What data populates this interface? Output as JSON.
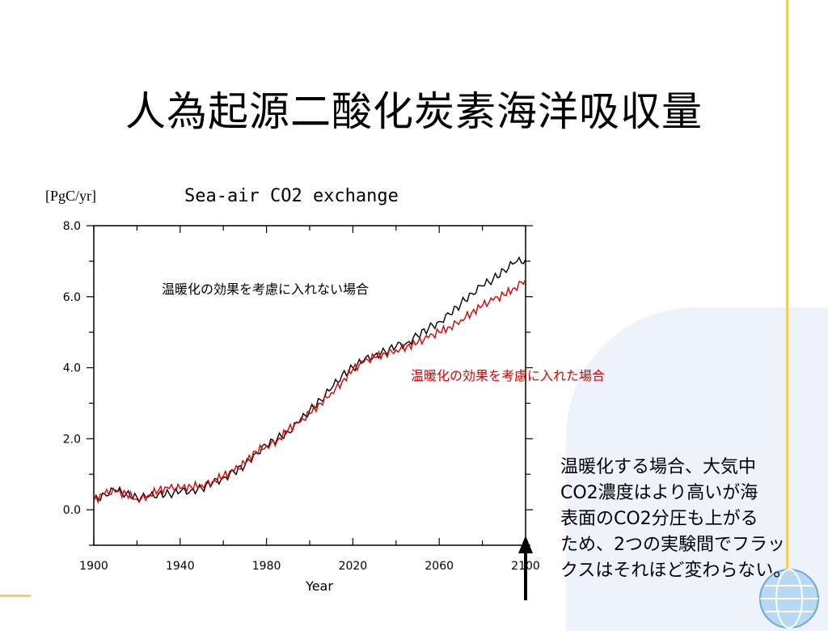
{
  "slide": {
    "title": "人為起源二酸化炭素海洋吸収量",
    "unit_label": "[PgC/yr]",
    "note_lines": [
      "温暖化する場合、大気中",
      "CO2濃度はより高いが海",
      "表面のCO2分圧も上がる",
      "ため、2つの実験間でフラッ",
      "クスはそれほど変わらない。"
    ]
  },
  "chart_data": {
    "type": "line",
    "title": "Sea-air CO2 exchange",
    "xlabel": "Year",
    "ylabel": "[PgC/yr]",
    "xlim": [
      1900,
      2100
    ],
    "ylim": [
      -1,
      8
    ],
    "x_ticks": [
      1900,
      1940,
      1980,
      2020,
      2060,
      2100
    ],
    "y_ticks": [
      "0.0",
      "2.0",
      "4.0",
      "6.0",
      "8.0"
    ],
    "grid": false,
    "annotations": [
      {
        "text": "温暖化の効果を考慮に入れない場合",
        "color": "#000000"
      },
      {
        "text": "温暖化の効果を考慮に入れた場合",
        "color": "#e00000"
      }
    ],
    "marker": {
      "x": 2100,
      "label": "arrow"
    },
    "series": [
      {
        "color": "#000000",
        "x": [
          1900,
          1905,
          1910,
          1915,
          1920,
          1925,
          1930,
          1935,
          1940,
          1945,
          1950,
          1955,
          1960,
          1965,
          1970,
          1975,
          1980,
          1985,
          1990,
          1995,
          2000,
          2005,
          2010,
          2015,
          2020,
          2025,
          2030,
          2035,
          2040,
          2045,
          2050,
          2055,
          2060,
          2065,
          2070,
          2075,
          2080,
          2085,
          2090,
          2095,
          2100
        ],
        "y": [
          0.25,
          0.45,
          0.55,
          0.45,
          0.35,
          0.35,
          0.45,
          0.45,
          0.5,
          0.55,
          0.6,
          0.75,
          0.9,
          1.05,
          1.25,
          1.6,
          1.8,
          2.0,
          2.2,
          2.45,
          2.8,
          3.1,
          3.4,
          3.8,
          4.0,
          4.2,
          4.35,
          4.45,
          4.6,
          4.7,
          4.9,
          5.1,
          5.3,
          5.5,
          5.8,
          6.1,
          6.3,
          6.5,
          6.75,
          6.95,
          7.05
        ]
      },
      {
        "color": "#e00000",
        "x": [
          1900,
          1905,
          1910,
          1915,
          1920,
          1925,
          1930,
          1935,
          1940,
          1945,
          1950,
          1955,
          1960,
          1965,
          1970,
          1975,
          1980,
          1985,
          1990,
          1995,
          2000,
          2005,
          2010,
          2015,
          2020,
          2025,
          2030,
          2035,
          2040,
          2045,
          2050,
          2055,
          2060,
          2065,
          2070,
          2075,
          2080,
          2085,
          2090,
          2095,
          2100
        ],
        "y": [
          0.25,
          0.45,
          0.5,
          0.45,
          0.3,
          0.4,
          0.55,
          0.6,
          0.6,
          0.65,
          0.7,
          0.8,
          0.95,
          1.1,
          1.3,
          1.65,
          1.8,
          1.95,
          2.25,
          2.45,
          2.7,
          3.0,
          3.3,
          3.6,
          3.95,
          4.15,
          4.3,
          4.4,
          4.5,
          4.6,
          4.7,
          4.85,
          5.0,
          5.15,
          5.35,
          5.55,
          5.75,
          5.9,
          6.05,
          6.25,
          6.5
        ]
      }
    ]
  }
}
